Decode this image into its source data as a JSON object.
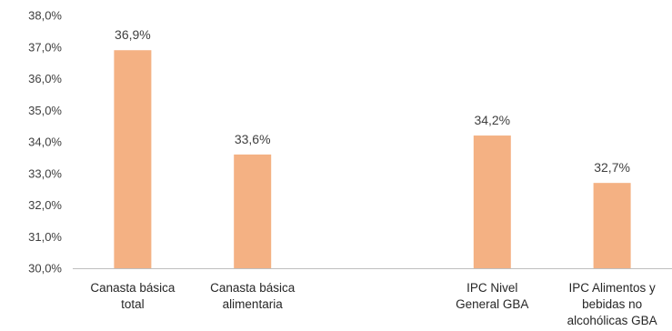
{
  "chart_data": {
    "type": "bar",
    "categories": [
      [
        "Canasta básica",
        "total"
      ],
      [
        "Canasta básica",
        "alimentaria"
      ],
      [],
      [
        "IPC Nivel",
        "General GBA"
      ],
      [
        "IPC Alimentos y",
        "bebidas no",
        "alcohólicas GBA"
      ]
    ],
    "values": [
      36.9,
      33.6,
      null,
      34.2,
      32.7
    ],
    "data_labels": [
      "36,9%",
      "33,6%",
      "",
      "34,2%",
      "32,7%"
    ],
    "y_ticks": [
      "30,0%",
      "31,0%",
      "32,0%",
      "33,0%",
      "34,0%",
      "35,0%",
      "36,0%",
      "37,0%",
      "38,0%"
    ],
    "ylim": [
      30,
      38
    ],
    "grid": false,
    "legend": "none",
    "bar_color": "#F4B183",
    "axis_color": "#BFBFBF"
  }
}
